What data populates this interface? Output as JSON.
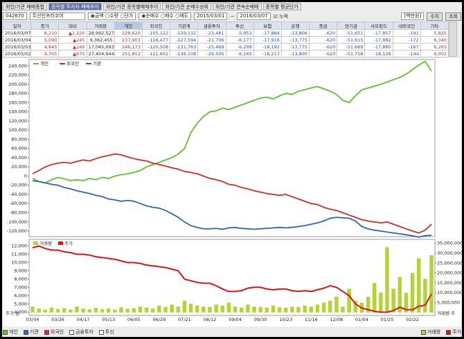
{
  "tabs": [
    "외인/기관 매매종합",
    "종목별 투자자 매매추이",
    "외인/기관 종목별매매추이",
    "외인/기관 순매수상위",
    "외인/기관 연속순매매",
    "종목별 평균단가"
  ],
  "toolbar": {
    "code": "042670",
    "name": "두산인프라코어",
    "amount_options": [
      "금액",
      "수량",
      "단가"
    ],
    "trade_options": [
      "순매수",
      "매수",
      "매도"
    ],
    "date_from": "2015/03/01",
    "date_sep": "~",
    "date_to": "2016/03/07",
    "cumulative": "누적",
    "unit": "[백만원]",
    "buttons": [
      "수치",
      "조회"
    ]
  },
  "table": {
    "columns": [
      "일자",
      "종가",
      "대비",
      "거래량",
      "개인",
      "외국인",
      "기관계",
      "금융투자",
      "투신",
      "보험",
      "은행",
      "종금",
      "연기금",
      "사모펀드",
      "내외국인",
      "기타"
    ],
    "rows": [
      [
        "2016/03/07",
        "6,210",
        "▲1,120",
        "28,992,527",
        "228,620",
        "-105,122",
        "-129,132",
        "-23,481",
        "-5,953",
        "-17,884",
        "-13,806",
        "-620",
        "-51,651",
        "-17,857",
        "-191",
        "5,825"
      ],
      [
        "2016/03/04",
        "5,090",
        "▲245",
        "9,362,455",
        "237,903",
        "-116,477",
        "-127,594",
        "-21,706",
        "-6,177",
        "-17,916",
        "-13,775",
        "-620",
        "-51,615",
        "-17,882",
        "-172",
        "6,340"
      ],
      [
        "2016/03/03",
        "4,845",
        "▲140",
        "17,045,093",
        "246,173",
        "-120,508",
        "-131,763",
        "-25,469",
        "-6,209",
        "-18,192",
        "-13,775",
        "-620",
        "-51,689",
        "-17,880",
        "-167",
        "6,265"
      ],
      [
        "2016/03/02",
        "4,705",
        "▲675",
        "27,404,944",
        "251,852",
        "-121,602",
        "-136,108",
        "-29,505",
        "-6,165",
        "-18,217",
        "-13,800",
        "-620",
        "-51,758",
        "-18,128",
        "-144",
        "6,002"
      ]
    ]
  },
  "chart_data": [
    {
      "type": "line",
      "ylim": [
        -132000,
        254000
      ],
      "yticks": [
        {
          "value": 240000,
          "label": "240,000"
        },
        {
          "value": 220000,
          "label": "220,000"
        },
        {
          "value": 200000,
          "label": "200,000"
        },
        {
          "value": 180000,
          "label": "180,000"
        },
        {
          "value": 160000,
          "label": "160,000"
        },
        {
          "value": 140000,
          "label": "140,000"
        },
        {
          "value": 120000,
          "label": "120,000"
        },
        {
          "value": 100000,
          "label": "100,000"
        },
        {
          "value": 80000,
          "label": "80,000"
        },
        {
          "value": 60000,
          "label": "60,000"
        },
        {
          "value": 40000,
          "label": "40,000"
        },
        {
          "value": 20000,
          "label": "20,000"
        },
        0,
        {
          "value": -20000,
          "label": "-20,000"
        },
        {
          "value": -40000,
          "label": "-40,000"
        },
        {
          "value": -60000,
          "label": "-60,000"
        },
        {
          "value": -80000,
          "label": "-80,000"
        },
        {
          "value": -100000,
          "label": "-100,000"
        },
        {
          "value": -120000,
          "label": "-120,000"
        }
      ],
      "series": [
        {
          "name": "개인",
          "color": "#5cc12a",
          "values": [
            -5000,
            -12000,
            -15000,
            -8000,
            -3000,
            -6000,
            -10000,
            -8000,
            -10000,
            -5000,
            -8000,
            -3000,
            -5000,
            0,
            3000,
            5000,
            8000,
            12000,
            20000,
            25000,
            30000,
            35000,
            40000,
            48000,
            60000,
            95000,
            115000,
            130000,
            140000,
            142000,
            148000,
            145000,
            150000,
            155000,
            160000,
            165000,
            170000,
            172000,
            168000,
            175000,
            180000,
            178000,
            185000,
            188000,
            192000,
            195000,
            190000,
            185000,
            178000,
            165000,
            160000,
            175000,
            188000,
            192000,
            196000,
            200000,
            205000,
            210000,
            215000,
            222000,
            232000,
            242000,
            250000,
            228620
          ]
        },
        {
          "name": "외국인",
          "color": "#d42a2a",
          "values": [
            5000,
            12000,
            20000,
            25000,
            28000,
            30000,
            28000,
            32000,
            35000,
            33000,
            38000,
            42000,
            45000,
            48000,
            46000,
            42000,
            38000,
            35000,
            33000,
            28000,
            25000,
            22000,
            18000,
            15000,
            10000,
            8000,
            5000,
            0,
            -5000,
            -8000,
            -12000,
            -18000,
            -20000,
            -25000,
            -28000,
            -32000,
            -35000,
            -38000,
            -40000,
            -42000,
            -40000,
            -45000,
            -50000,
            -55000,
            -60000,
            -62000,
            -68000,
            -72000,
            -75000,
            -80000,
            -85000,
            -90000,
            -95000,
            -98000,
            -100000,
            -102000,
            -100000,
            -105000,
            -110000,
            -115000,
            -120000,
            -124000,
            -118000,
            -105122
          ]
        },
        {
          "name": "기관",
          "color": "#2c64b4",
          "values": [
            -10000,
            -12000,
            -15000,
            -18000,
            -20000,
            -25000,
            -28000,
            -32000,
            -35000,
            -38000,
            -42000,
            -45000,
            -50000,
            -52000,
            -55000,
            -53000,
            -55000,
            -60000,
            -65000,
            -68000,
            -70000,
            -75000,
            -82000,
            -90000,
            -100000,
            -108000,
            -112000,
            -115000,
            -115000,
            -114000,
            -116000,
            -113000,
            -112000,
            -114000,
            -115000,
            -116000,
            -115000,
            -114000,
            -113000,
            -112000,
            -113000,
            -112000,
            -110000,
            -108000,
            -105000,
            -102000,
            -98000,
            -92000,
            -90000,
            -91000,
            -92000,
            -98000,
            -110000,
            -115000,
            -118000,
            -120000,
            -122000,
            -124000,
            -126000,
            -128000,
            -130000,
            -133000,
            -130000,
            -129132
          ]
        }
      ]
    },
    {
      "type": "combo",
      "y_label": "주가:원",
      "y2_label": "거래량:주",
      "categories": [
        "03/04",
        null,
        null,
        null,
        "03/26",
        null,
        null,
        null,
        "04/17",
        null,
        null,
        null,
        "05/13",
        null,
        null,
        null,
        "06/05",
        null,
        null,
        null,
        "06/29",
        null,
        null,
        null,
        "07/21",
        null,
        null,
        null,
        "08/12",
        null,
        null,
        null,
        "09/04",
        null,
        null,
        null,
        "09/30",
        null,
        null,
        null,
        "10/23",
        null,
        null,
        null,
        "11/16",
        null,
        null,
        null,
        "12/08",
        null,
        null,
        null,
        "01/04",
        null,
        null,
        null,
        "01/25",
        null,
        null,
        null,
        "02/22",
        null,
        null,
        null
      ],
      "ylim": [
        3600,
        12800
      ],
      "yticks": [
        {
          "value": 12000,
          "label": "12,000"
        },
        {
          "value": 11000,
          "label": "11,000"
        },
        {
          "value": 10000,
          "label": "10,000"
        },
        {
          "value": 9000,
          "label": "9,000"
        },
        {
          "value": 8000,
          "label": "8,000"
        },
        {
          "value": 7000,
          "label": "7,000"
        },
        {
          "value": 6000,
          "label": "6,000"
        },
        {
          "value": 5000,
          "label": "5,000"
        },
        {
          "value": 4000,
          "label": "4,000"
        }
      ],
      "y2lim": [
        -1500000,
        37000000
      ],
      "y2ticks": [
        {
          "value": 35000000,
          "label": "35,000,000"
        },
        {
          "value": 30000000,
          "label": "30,000,000"
        },
        {
          "value": 25000000,
          "label": "25,000,000"
        },
        {
          "value": 20000000,
          "label": "20,000,000"
        },
        {
          "value": 15000000,
          "label": "15,000,000"
        },
        {
          "value": 10000000,
          "label": "10,000,000"
        },
        {
          "value": 5000000,
          "label": "5,000,000"
        }
      ],
      "series": [
        {
          "name": "거래량",
          "type": "bar",
          "axis": "y2",
          "color": "#b6d334",
          "values": [
            3000000,
            2000000,
            1500000,
            2500000,
            1800000,
            2200000,
            1500000,
            3000000,
            2000000,
            1600000,
            2400000,
            1800000,
            2000000,
            1500000,
            2600000,
            1900000,
            2200000,
            3000000,
            2500000,
            2000000,
            3500000,
            2800000,
            4000000,
            3000000,
            6000000,
            4500000,
            3500000,
            3000000,
            2800000,
            4000000,
            3500000,
            5000000,
            3000000,
            2500000,
            4000000,
            3000000,
            2800000,
            2500000,
            3500000,
            2600000,
            2400000,
            3000000,
            2800000,
            3500000,
            3000000,
            4000000,
            5000000,
            6000000,
            8000000,
            3000000,
            12000000,
            6000000,
            5000000,
            8000000,
            15000000,
            10000000,
            33000000,
            12000000,
            18000000,
            10000000,
            20000000,
            27404944,
            17045093,
            28992527
          ]
        },
        {
          "name": "주가",
          "type": "line",
          "color": "#e01010",
          "values": [
            11800,
            12000,
            11700,
            11500,
            11500,
            11300,
            11200,
            11000,
            11000,
            10900,
            10700,
            10600,
            10500,
            10400,
            10200,
            10000,
            10000,
            9900,
            9700,
            9600,
            9500,
            9400,
            9200,
            9000,
            8000,
            7800,
            7600,
            7500,
            7500,
            7200,
            6800,
            6500,
            6500,
            6600,
            6900,
            7000,
            7000,
            6800,
            6700,
            6800,
            6800,
            6600,
            6500,
            6600,
            6500,
            6700,
            6900,
            7200,
            7000,
            6500,
            6000,
            5000,
            4500,
            4300,
            4100,
            4000,
            4000,
            4200,
            4600,
            4300,
            4300,
            4705,
            4845,
            6210
          ]
        }
      ]
    }
  ],
  "bottom_legend": {
    "left": [
      "개인",
      "기관",
      "외국인",
      "금융투자",
      "투신"
    ],
    "right": [
      "거래량",
      "주가"
    ]
  }
}
